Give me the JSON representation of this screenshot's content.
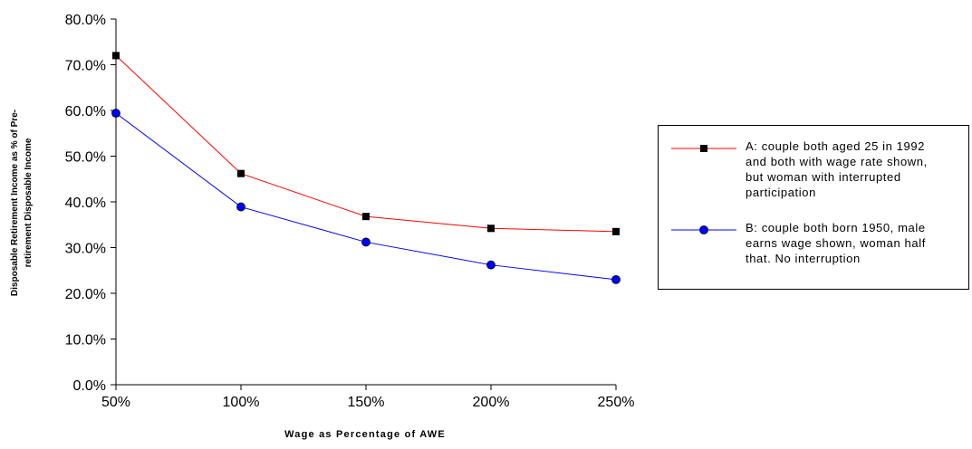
{
  "chart_data": {
    "type": "line",
    "title": "",
    "xlabel": "Wage as Percentage of AWE",
    "ylabel_lines": [
      "Disposable Retirement Income as % of Pre-",
      "retirement Disposable Income"
    ],
    "categories": [
      "50%",
      "100%",
      "150%",
      "200%",
      "250%"
    ],
    "ylim": [
      0,
      80
    ],
    "yticks": [
      "0.0%",
      "10.0%",
      "20.0%",
      "30.0%",
      "40.0%",
      "50.0%",
      "60.0%",
      "70.0%",
      "80.0%"
    ],
    "grid": false,
    "legend_position": "right",
    "series": [
      {
        "name": "A: couple both aged 25 in 1992 and both with wage rate shown, but woman with interrupted participation",
        "legend_lines": [
          "A: couple both aged 25 in 1992",
          "and both with wage rate shown,",
          "but woman with interrupted",
          "participation"
        ],
        "values": [
          72.0,
          46.2,
          36.8,
          34.2,
          33.5
        ],
        "line_color": "#ff0000",
        "marker": "square",
        "marker_color": "#000000"
      },
      {
        "name": "B: couple both born 1950, male earns wage shown, woman half that. No interruption",
        "legend_lines": [
          "B: couple both born 1950, male",
          "earns wage shown, woman half",
          "that. No interruption"
        ],
        "values": [
          59.4,
          38.9,
          31.2,
          26.2,
          23.0
        ],
        "line_color": "#0000ff",
        "marker": "circle",
        "marker_color": "#0000ff"
      }
    ]
  }
}
